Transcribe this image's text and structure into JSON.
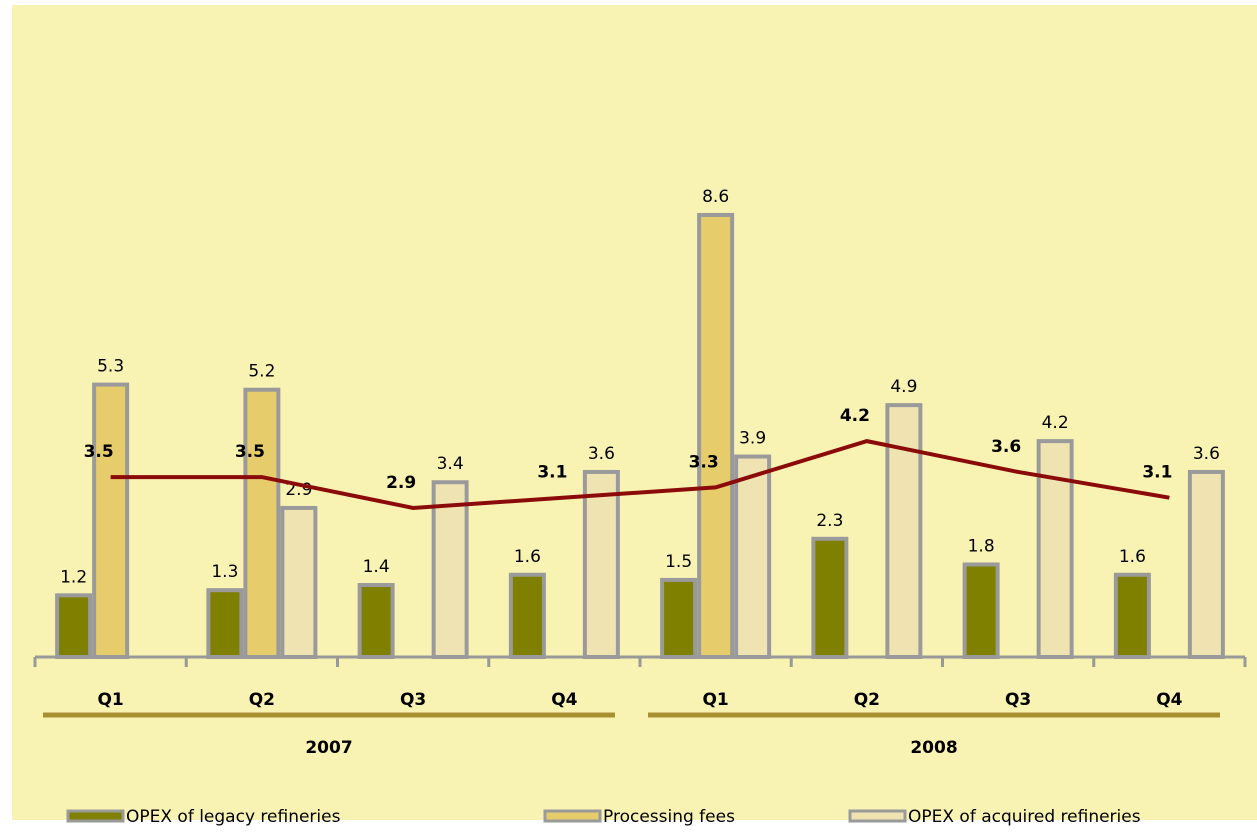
{
  "chart_data": {
    "type": "bar",
    "groups": [
      {
        "label": "2007",
        "span": [
          0,
          3
        ]
      },
      {
        "label": "2008",
        "span": [
          4,
          7
        ]
      }
    ],
    "categories": [
      "Q1",
      "Q2",
      "Q3",
      "Q4",
      "Q1",
      "Q2",
      "Q3",
      "Q4"
    ],
    "series": [
      {
        "name": "OPEX of legacy refineries",
        "type": "bar",
        "color": "#7f7f00",
        "values": [
          1.2,
          1.3,
          1.4,
          1.6,
          1.5,
          2.3,
          1.8,
          1.6
        ]
      },
      {
        "name": "Processing fees",
        "type": "bar",
        "color": "#e6cc6a",
        "values": [
          5.3,
          5.2,
          null,
          null,
          8.6,
          null,
          null,
          null
        ]
      },
      {
        "name": "OPEX of acquired refineries",
        "type": "bar",
        "color": "#f0e3b2",
        "values": [
          null,
          2.9,
          3.4,
          3.6,
          3.9,
          4.9,
          4.2,
          3.6
        ]
      },
      {
        "type": "line",
        "color": "#8b0a0a",
        "values": [
          3.5,
          3.5,
          2.9,
          3.1,
          3.3,
          4.2,
          3.6,
          3.1
        ]
      }
    ]
  }
}
